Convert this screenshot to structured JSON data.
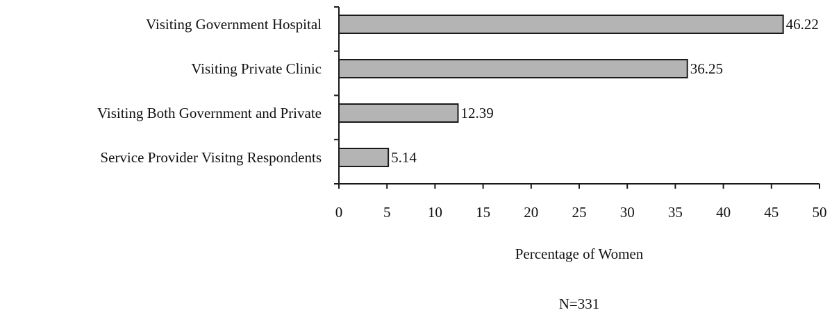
{
  "chart_data": {
    "type": "bar",
    "orientation": "horizontal",
    "categories": [
      "Visiting Government Hospital",
      "Visiting Private Clinic",
      "Visiting Both Government and Private",
      "Service Provider Visitng Respondents"
    ],
    "values": [
      46.22,
      36.25,
      12.39,
      5.14
    ],
    "data_labels": [
      "46.22",
      "36.25",
      "12.39",
      "5.14"
    ],
    "xlabel": "Percentage of Women",
    "ylabel": "",
    "xlim": [
      0,
      50
    ],
    "xticks": [
      0,
      5,
      10,
      15,
      20,
      25,
      30,
      35,
      40,
      45,
      50
    ],
    "grid": false,
    "legend": "none",
    "note": "N=331",
    "colors": {
      "bar_fill": "#b4b4b4",
      "bar_stroke": "#1a1a1a",
      "axis": "#1a1a1a",
      "text": "#111111"
    }
  }
}
